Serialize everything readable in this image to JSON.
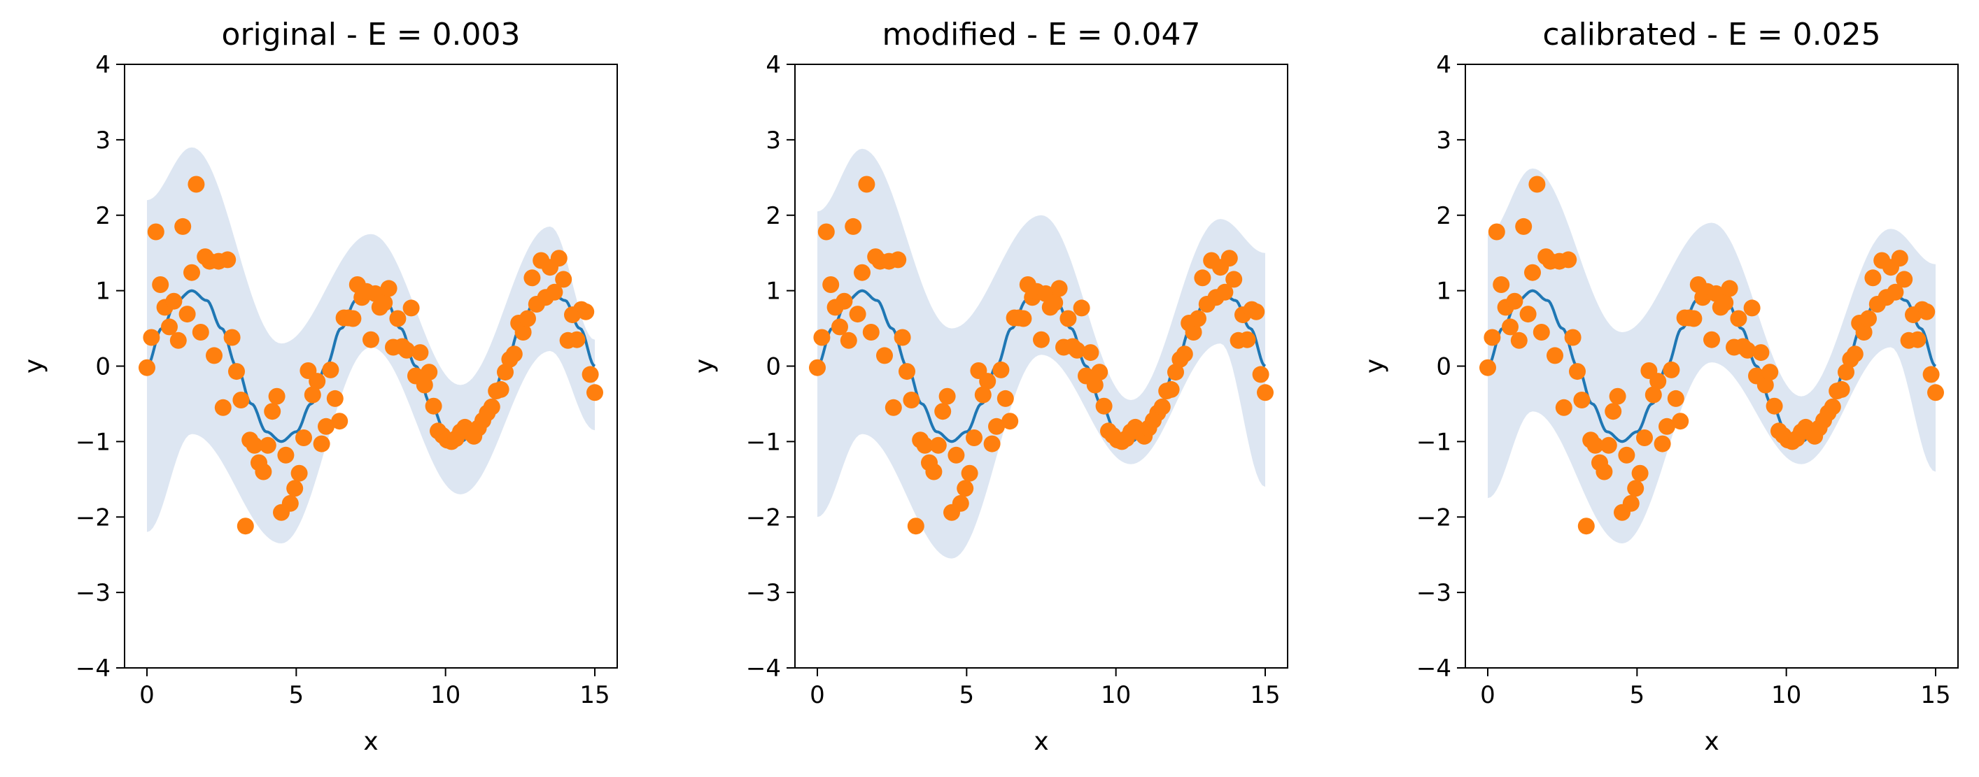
{
  "colors": {
    "line": "#1f77b4",
    "points": "#ff7f0e",
    "band": "#c6d6ea"
  },
  "chart_data": [
    {
      "type": "scatter",
      "title": "original - E = 0.003",
      "xlabel": "x",
      "ylabel": "y",
      "xlim": [
        -0.75,
        15.75
      ],
      "ylim": [
        -4,
        4
      ],
      "xticks": [
        "0",
        "5",
        "10",
        "15"
      ],
      "yticks": [
        "−4",
        "−3",
        "−2",
        "−1",
        "0",
        "1",
        "2",
        "3",
        "4"
      ],
      "grid": false,
      "band_x": [
        0,
        1.5,
        4.5,
        7.5,
        10.5,
        13.5,
        15
      ],
      "band_upper": [
        2.2,
        2.9,
        0.3,
        1.75,
        -0.25,
        1.85,
        0.35
      ],
      "band_lower": [
        -2.2,
        -0.9,
        -2.35,
        0.25,
        -1.7,
        0.2,
        -0.85
      ]
    },
    {
      "type": "scatter",
      "title": "modified - E = 0.047",
      "xlabel": "x",
      "ylabel": "y",
      "xlim": [
        -0.75,
        15.75
      ],
      "ylim": [
        -4,
        4
      ],
      "xticks": [
        "0",
        "5",
        "10",
        "15"
      ],
      "yticks": [
        "−4",
        "−3",
        "−2",
        "−1",
        "0",
        "1",
        "2",
        "3",
        "4"
      ],
      "grid": false,
      "band_x": [
        0,
        1.5,
        4.5,
        7.5,
        10.5,
        13.5,
        15
      ],
      "band_upper": [
        2.05,
        2.88,
        0.5,
        2.0,
        -0.45,
        1.95,
        1.5
      ],
      "band_lower": [
        -2.0,
        -0.9,
        -2.55,
        0.15,
        -1.3,
        0.3,
        -1.6
      ]
    },
    {
      "type": "scatter",
      "title": "calibrated - E = 0.025",
      "xlabel": "x",
      "ylabel": "y",
      "xlim": [
        -0.75,
        15.75
      ],
      "ylim": [
        -4,
        4
      ],
      "xticks": [
        "0",
        "5",
        "10",
        "15"
      ],
      "yticks": [
        "−4",
        "−3",
        "−2",
        "−1",
        "0",
        "1",
        "2",
        "3",
        "4"
      ],
      "grid": false,
      "band_x": [
        0,
        1.5,
        4.5,
        7.5,
        10.5,
        13.5,
        15
      ],
      "band_upper": [
        1.75,
        2.62,
        0.45,
        1.9,
        -0.4,
        1.82,
        1.35
      ],
      "band_lower": [
        -1.75,
        -0.6,
        -2.35,
        0.05,
        -1.3,
        0.25,
        -1.4
      ]
    }
  ],
  "shared_series": {
    "line": {
      "x": [
        0,
        0.5,
        1,
        1.5,
        2,
        2.5,
        3,
        3.5,
        4,
        4.5,
        5,
        5.5,
        6,
        6.5,
        7,
        7.5,
        8,
        8.5,
        9,
        9.5,
        10,
        10.5,
        11,
        11.5,
        12,
        12.5,
        13,
        13.5,
        14,
        14.5,
        15
      ],
      "y": [
        0,
        0.5,
        0.87,
        1.0,
        0.87,
        0.5,
        0,
        -0.5,
        -0.87,
        -1.0,
        -0.87,
        -0.5,
        0,
        0.5,
        0.87,
        1.0,
        0.87,
        0.5,
        0,
        -0.5,
        -0.87,
        -1.0,
        -0.87,
        -0.5,
        0,
        0.5,
        0.87,
        1.0,
        0.87,
        0.5,
        0
      ]
    },
    "points": {
      "x": [
        0,
        0.15,
        0.3,
        0.45,
        0.6,
        0.75,
        0.9,
        1.05,
        1.2,
        1.35,
        1.5,
        1.65,
        1.8,
        1.95,
        2.1,
        2.25,
        2.4,
        2.55,
        2.7,
        2.85,
        3.0,
        3.15,
        3.3,
        3.45,
        3.6,
        3.75,
        3.9,
        4.05,
        4.2,
        4.35,
        4.5,
        4.65,
        4.8,
        4.95,
        5.1,
        5.25,
        5.4,
        5.55,
        5.7,
        5.85,
        6.0,
        6.15,
        6.3,
        6.45,
        6.6,
        6.75,
        6.9,
        7.05,
        7.2,
        7.35,
        7.5,
        7.65,
        7.8,
        7.95,
        8.1,
        8.25,
        8.4,
        8.55,
        8.7,
        8.85,
        9.0,
        9.15,
        9.3,
        9.45,
        9.6,
        9.75,
        9.9,
        10.05,
        10.2,
        10.35,
        10.5,
        10.65,
        10.8,
        10.95,
        11.1,
        11.25,
        11.4,
        11.55,
        11.7,
        11.85,
        12.0,
        12.15,
        12.3,
        12.45,
        12.6,
        12.75,
        12.9,
        13.05,
        13.2,
        13.35,
        13.5,
        13.65,
        13.8,
        13.95,
        14.1,
        14.25,
        14.4,
        14.55,
        14.7,
        14.85,
        15.0
      ],
      "y": [
        -0.02,
        0.38,
        1.78,
        1.08,
        0.78,
        0.52,
        0.86,
        0.34,
        1.85,
        0.69,
        1.24,
        2.41,
        0.45,
        1.45,
        1.39,
        0.14,
        1.39,
        -0.55,
        1.41,
        0.38,
        -0.07,
        -0.45,
        -2.12,
        -0.98,
        -1.05,
        -1.28,
        -1.4,
        -1.05,
        -0.6,
        -0.4,
        -1.94,
        -1.18,
        -1.82,
        -1.62,
        -1.42,
        -0.95,
        -0.06,
        -0.38,
        -0.2,
        -1.03,
        -0.8,
        -0.05,
        -0.43,
        -0.73,
        0.64,
        0.64,
        0.63,
        1.08,
        0.91,
        0.99,
        0.35,
        0.96,
        0.78,
        0.84,
        1.03,
        0.25,
        0.63,
        0.26,
        0.21,
        0.77,
        -0.13,
        0.18,
        -0.25,
        -0.08,
        -0.53,
        -0.86,
        -0.92,
        -0.98,
        -1.0,
        -0.96,
        -0.87,
        -0.81,
        -0.88,
        -0.93,
        -0.82,
        -0.72,
        -0.62,
        -0.54,
        -0.33,
        -0.31,
        -0.08,
        0.09,
        0.16,
        0.57,
        0.45,
        0.63,
        1.17,
        0.82,
        1.4,
        0.91,
        1.31,
        0.98,
        1.43,
        1.15,
        0.34,
        0.68,
        0.35,
        0.75,
        0.72,
        -0.11,
        -0.35
      ]
    }
  }
}
